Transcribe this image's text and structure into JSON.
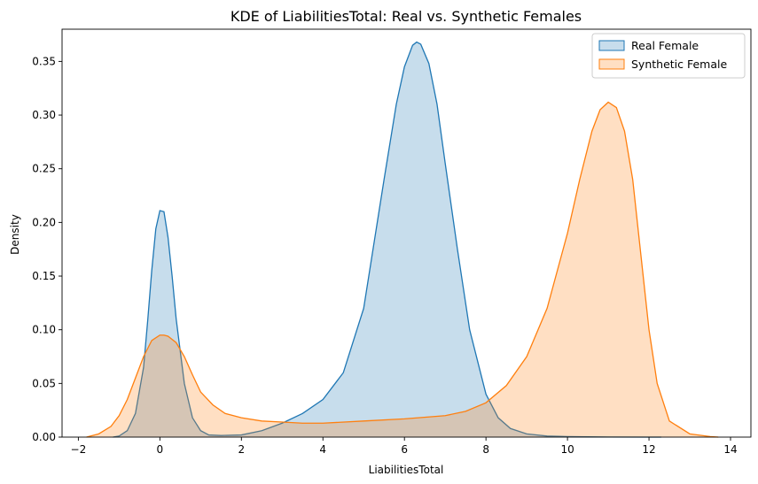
{
  "chart_data": {
    "type": "area",
    "title": "KDE of LiabilitiesTotal: Real vs. Synthetic Females",
    "xlabel": "LiabilitiesTotal",
    "ylabel": "Density",
    "xlim": [
      -2.4,
      14.5
    ],
    "ylim": [
      0,
      0.38
    ],
    "xticks": [
      -2,
      0,
      2,
      4,
      6,
      8,
      10,
      12,
      14
    ],
    "yticks": [
      0.0,
      0.05,
      0.1,
      0.15,
      0.2,
      0.25,
      0.3,
      0.35
    ],
    "xtick_labels": [
      "−2",
      "0",
      "2",
      "4",
      "6",
      "8",
      "10",
      "12",
      "14"
    ],
    "ytick_labels": [
      "0.00",
      "0.05",
      "0.10",
      "0.15",
      "0.20",
      "0.25",
      "0.30",
      "0.35"
    ],
    "grid": false,
    "legend_position": "top-right",
    "series": [
      {
        "name": "Real Female",
        "color": "#1f77b4",
        "fill": "#1f77b4",
        "x": [
          -1.15,
          -1.0,
          -0.8,
          -0.6,
          -0.4,
          -0.3,
          -0.2,
          -0.1,
          0.0,
          0.1,
          0.2,
          0.3,
          0.4,
          0.6,
          0.8,
          1.0,
          1.2,
          1.5,
          2.0,
          2.5,
          3.0,
          3.5,
          4.0,
          4.5,
          5.0,
          5.5,
          5.8,
          6.0,
          6.2,
          6.3,
          6.4,
          6.6,
          6.8,
          7.0,
          7.3,
          7.6,
          8.0,
          8.3,
          8.6,
          9.0,
          9.5,
          10.0,
          11.0,
          12.0,
          12.3
        ],
        "y": [
          0.0,
          0.001,
          0.006,
          0.022,
          0.065,
          0.108,
          0.155,
          0.194,
          0.211,
          0.21,
          0.186,
          0.15,
          0.11,
          0.05,
          0.018,
          0.006,
          0.002,
          0.0015,
          0.002,
          0.006,
          0.013,
          0.022,
          0.035,
          0.06,
          0.12,
          0.24,
          0.31,
          0.345,
          0.365,
          0.368,
          0.366,
          0.348,
          0.31,
          0.255,
          0.175,
          0.1,
          0.04,
          0.018,
          0.008,
          0.003,
          0.001,
          0.0005,
          0.0001,
          0.0,
          0.0
        ]
      },
      {
        "name": "Synthetic Female",
        "color": "#ff7f0e",
        "fill": "#ff7f0e",
        "x": [
          -1.8,
          -1.5,
          -1.2,
          -1.0,
          -0.8,
          -0.6,
          -0.4,
          -0.2,
          0.0,
          0.1,
          0.2,
          0.4,
          0.6,
          0.8,
          1.0,
          1.3,
          1.6,
          2.0,
          2.5,
          3.0,
          3.5,
          4.0,
          5.0,
          6.0,
          7.0,
          7.5,
          8.0,
          8.5,
          9.0,
          9.5,
          10.0,
          10.3,
          10.6,
          10.8,
          11.0,
          11.2,
          11.4,
          11.6,
          11.8,
          12.0,
          12.2,
          12.5,
          13.0,
          13.5,
          13.7
        ],
        "y": [
          0.0,
          0.003,
          0.01,
          0.02,
          0.035,
          0.055,
          0.075,
          0.09,
          0.095,
          0.095,
          0.094,
          0.088,
          0.075,
          0.058,
          0.042,
          0.03,
          0.022,
          0.018,
          0.015,
          0.014,
          0.013,
          0.013,
          0.015,
          0.017,
          0.02,
          0.024,
          0.032,
          0.048,
          0.075,
          0.12,
          0.19,
          0.24,
          0.285,
          0.305,
          0.312,
          0.307,
          0.285,
          0.24,
          0.17,
          0.1,
          0.05,
          0.015,
          0.003,
          0.0005,
          0.0
        ]
      }
    ]
  }
}
